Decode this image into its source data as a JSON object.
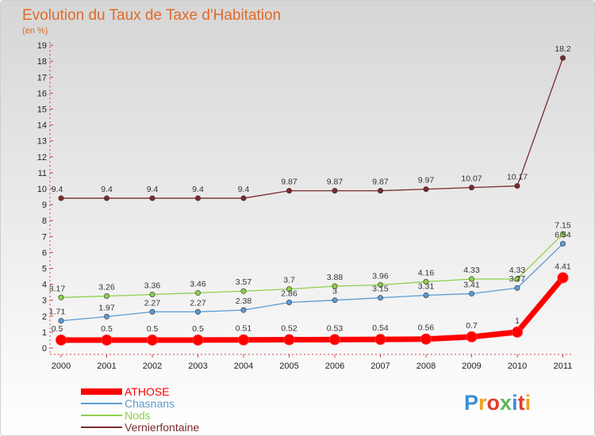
{
  "chart_data": {
    "type": "line",
    "title": "Evolution du Taux de Taxe d'Habitation",
    "subtitle": "(en %)",
    "x": [
      "2000",
      "2001",
      "2002",
      "2003",
      "2004",
      "2005",
      "2006",
      "2007",
      "2008",
      "2009",
      "2010",
      "2011"
    ],
    "yticks": [
      "0",
      "1",
      "2",
      "3",
      "4",
      "5",
      "6",
      "7",
      "8",
      "9",
      "10",
      "11",
      "12",
      "13",
      "14",
      "15",
      "16",
      "17",
      "18",
      "19"
    ],
    "ylim": [
      0,
      19
    ],
    "grid": false,
    "legend_position": "bottom-left",
    "series": [
      {
        "name": "ATHOSE",
        "color": "#ff0000",
        "values": [
          0.5,
          0.5,
          0.5,
          0.5,
          0.51,
          0.52,
          0.53,
          0.54,
          0.56,
          0.7,
          1,
          4.41
        ],
        "labels": [
          "0.5",
          "0.5",
          "0.5",
          "0.5",
          "0.51",
          "0.52",
          "0.53",
          "0.54",
          "0.56",
          "0.7",
          "1",
          "4.41"
        ]
      },
      {
        "name": "Chasnans",
        "color": "#5b9bd5",
        "values": [
          1.71,
          1.97,
          2.27,
          2.27,
          2.38,
          2.86,
          3,
          3.15,
          3.31,
          3.41,
          3.77,
          6.54
        ],
        "labels": [
          "1.71",
          "1.97",
          "2.27",
          "2.27",
          "2.38",
          "2.86",
          "3",
          "3.15",
          "3.31",
          "3.41",
          "3.77",
          "6.54"
        ]
      },
      {
        "name": "Nods",
        "color": "#8ed04a",
        "values": [
          3.17,
          3.26,
          3.36,
          3.46,
          3.57,
          3.7,
          3.88,
          3.96,
          4.16,
          4.33,
          4.33,
          7.15
        ],
        "labels": [
          "3.17",
          "3.26",
          "3.36",
          "3.46",
          "3.57",
          "3.7",
          "3.88",
          "3.96",
          "4.16",
          "4.33",
          "4.33",
          "7.15"
        ]
      },
      {
        "name": "Vernierfontaine",
        "color": "#7a2a2a",
        "values": [
          9.4,
          9.4,
          9.4,
          9.4,
          9.4,
          9.87,
          9.87,
          9.87,
          9.97,
          10.07,
          10.17,
          18.2
        ],
        "labels": [
          "9.4",
          "9.4",
          "9.4",
          "9.4",
          "9.4",
          "9.87",
          "9.87",
          "9.87",
          "9.97",
          "10.07",
          "10.17",
          "18.2"
        ]
      }
    ]
  },
  "logo": {
    "text": "Proxiti",
    "colors": [
      "#3a8fd6",
      "#f0a020",
      "#e03c2c",
      "#5cb85c",
      "#3a8fd6",
      "#e03c2c",
      "#f0a020"
    ]
  }
}
